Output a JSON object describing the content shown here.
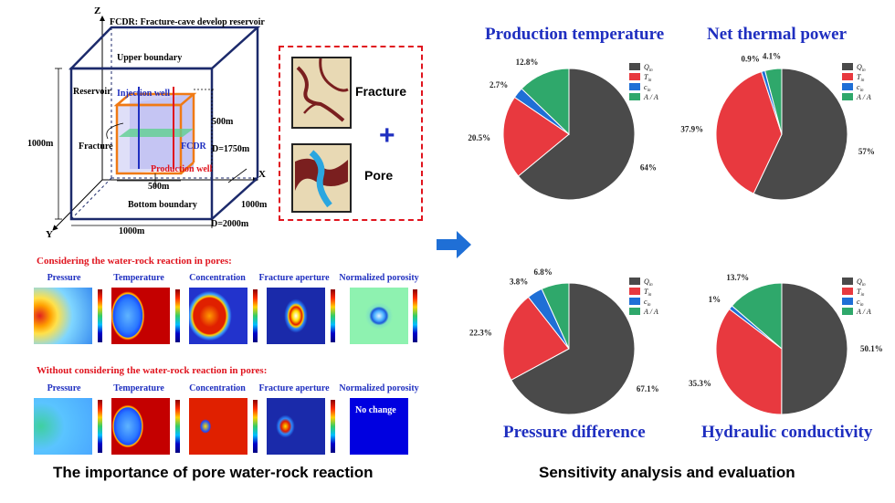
{
  "reservoir": {
    "title": "FCDR: Fracture-cave develop reservoir",
    "upper_boundary": "Upper boundary",
    "bottom_boundary": "Bottom boundary",
    "reservoir": "Reservoir",
    "injection_well": "Injection well",
    "production_well": "Production well",
    "fracture": "Fracture",
    "fcdr": "FCDR",
    "axis_z": "Z",
    "axis_x": "X",
    "axis_y": "Y",
    "dim_1000m_left": "1000m",
    "dim_500m_vertical": "500m",
    "dim_depth": "D=1750m",
    "dim_500m_horizontal": "500m",
    "dim_1000m_right": "1000m",
    "dim_1000m_bottom": "1000m",
    "dim_depth_bottom": "D=2000m"
  },
  "fracture_pore": {
    "fracture_label": "Fracture",
    "pore_label": "Pore",
    "plus": "+"
  },
  "comparison": {
    "row1_heading": "Considering the water-rock reaction in pores:",
    "row2_heading": "Without considering the water-rock reaction in pores:",
    "panels": [
      "Pressure",
      "Temperature",
      "Concentration",
      "Fracture aperture",
      "Normalized porosity"
    ],
    "no_change": "No change"
  },
  "arrow_icon": "right-arrow-icon",
  "captions": {
    "left": "The importance of pore water-rock reaction",
    "right": "Sensitivity analysis and evaluation"
  },
  "colors": {
    "dark_gray": "#4a4a4a",
    "red": "#e8393f",
    "blue": "#1f6fd6",
    "green": "#2fa86b",
    "title_blue": "#1f2fc0",
    "heading_red": "#e0141e"
  },
  "chart_data": [
    {
      "type": "pie",
      "title": "Production temperature",
      "labels": [
        "Q_in",
        "T_in",
        "c_in",
        "A_f/A_f"
      ],
      "values": [
        64,
        20.5,
        2.7,
        12.8
      ],
      "value_labels": [
        "64%",
        "20.5%",
        "2.7%",
        "12.8%"
      ],
      "legend": [
        "Q",
        "T",
        "c",
        "A / A"
      ],
      "legend_sub": [
        "in",
        "in",
        "in",
        ""
      ],
      "legend_placement": "top-right"
    },
    {
      "type": "pie",
      "title": "Net thermal power",
      "labels": [
        "Q_in",
        "T_in",
        "c_in",
        "A_f/A_f"
      ],
      "values": [
        57,
        37.9,
        0.9,
        4.1
      ],
      "value_labels": [
        "57%",
        "37.9%",
        "0.9%",
        "4.1%"
      ],
      "legend": [
        "Q",
        "T",
        "c",
        "A / A"
      ],
      "legend_sub": [
        "in",
        "in",
        "in",
        ""
      ],
      "legend_placement": "top-right"
    },
    {
      "type": "pie",
      "title": "Pressure difference",
      "labels": [
        "Q_in",
        "T_in",
        "c_in",
        "A_f/A_f"
      ],
      "values": [
        67.1,
        22.3,
        3.8,
        6.8
      ],
      "value_labels": [
        "67.1%",
        "22.3%",
        "3.8%",
        "6.8%"
      ],
      "legend": [
        "Q",
        "T",
        "c",
        "A / A"
      ],
      "legend_sub": [
        "in",
        "in",
        "in",
        ""
      ],
      "legend_placement": "top-right"
    },
    {
      "type": "pie",
      "title": "Hydraulic conductivity",
      "labels": [
        "Q_in",
        "T_in",
        "c_in",
        "A_f/A_f"
      ],
      "values": [
        50.1,
        35.3,
        1,
        13.7
      ],
      "value_labels": [
        "50.1%",
        "35.3%",
        "1%",
        "13.7%"
      ],
      "legend": [
        "Q",
        "T",
        "c",
        "A / A"
      ],
      "legend_sub": [
        "in",
        "in",
        "in",
        ""
      ],
      "legend_placement": "top-right"
    }
  ]
}
